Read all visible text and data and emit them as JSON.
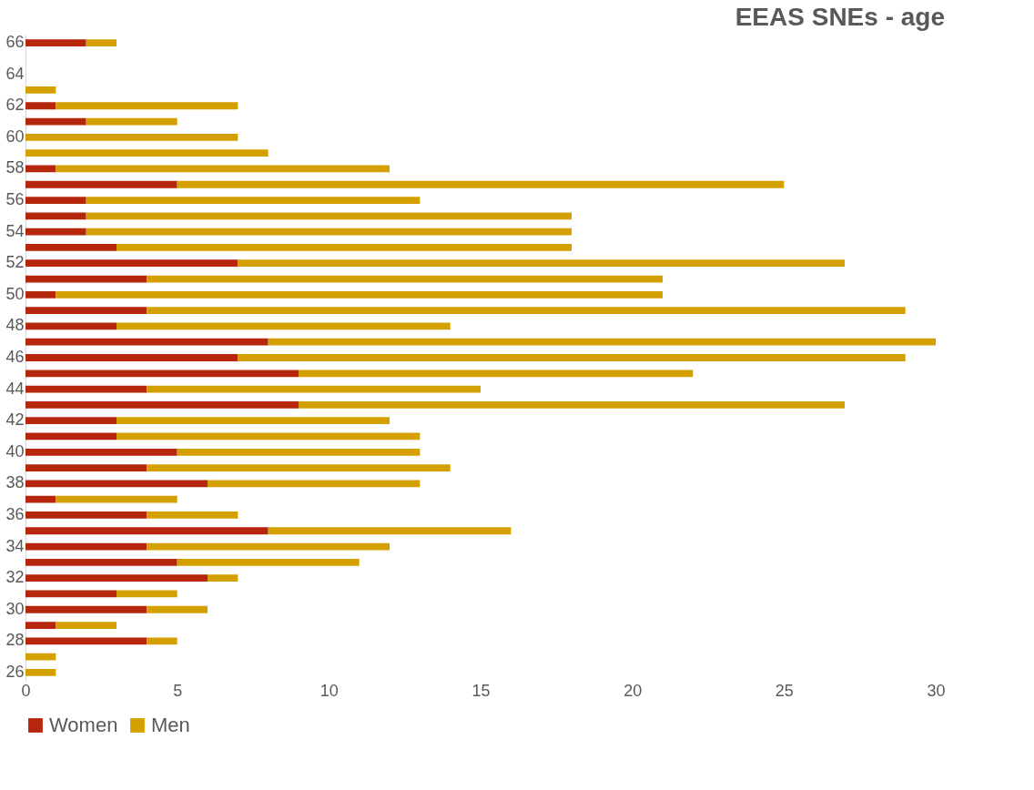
{
  "chart_data": {
    "type": "bar",
    "title": "EEAS SNEs - age",
    "orientation": "horizontal",
    "stacked": true,
    "categories": [
      "66",
      null,
      "64",
      null,
      "62",
      null,
      "60",
      null,
      "58",
      null,
      "56",
      null,
      "54",
      null,
      "52",
      null,
      "50",
      null,
      "48",
      null,
      "46",
      null,
      "44",
      null,
      "42",
      null,
      "40",
      null,
      "38",
      null,
      "36",
      null,
      "34",
      null,
      "32",
      null,
      "30",
      null,
      "28",
      null,
      "26"
    ],
    "series": [
      {
        "name": "Women",
        "color": "#b5260c",
        "values": [
          2,
          0,
          0,
          0,
          1,
          2,
          0,
          0,
          1,
          5,
          2,
          2,
          2,
          3,
          7,
          4,
          1,
          4,
          3,
          8,
          7,
          9,
          4,
          9,
          3,
          3,
          5,
          4,
          6,
          1,
          4,
          8,
          4,
          5,
          6,
          3,
          4,
          1,
          4,
          0,
          0
        ]
      },
      {
        "name": "Men",
        "color": "#d4a000",
        "values": [
          1,
          0,
          0,
          1,
          6,
          3,
          7,
          8,
          11,
          20,
          11,
          16,
          16,
          15,
          20,
          17,
          20,
          25,
          11,
          22,
          22,
          13,
          11,
          18,
          9,
          10,
          8,
          10,
          7,
          4,
          3,
          8,
          8,
          6,
          1,
          2,
          2,
          2,
          1,
          1,
          1
        ]
      }
    ],
    "xlim": [
      0,
      30
    ],
    "xticks": [
      0,
      5,
      10,
      15,
      20,
      25,
      30
    ],
    "grid": false,
    "legend": "bottom"
  }
}
